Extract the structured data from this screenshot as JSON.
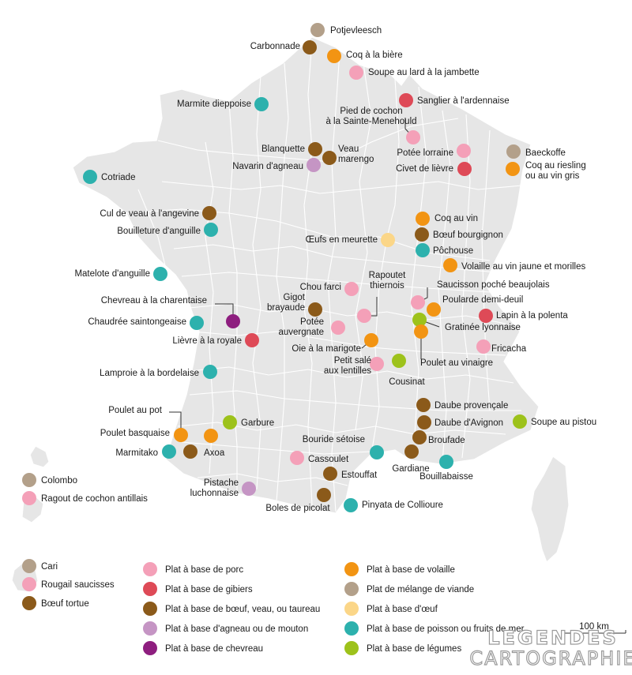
{
  "colors": {
    "porc": "#f4a0b8",
    "gibiers": "#de4a57",
    "boeuf": "#8b5a1a",
    "agneau": "#c595c4",
    "chevreau": "#8e1e7f",
    "volaille": "#f29413",
    "melange": "#b3a08a",
    "oeuf": "#fbd688",
    "poisson": "#2db1ad",
    "legumes": "#9dc21b",
    "land": "#e6e6e6",
    "border": "#ffffff"
  },
  "dishes": [
    {
      "name": "Potjevleesch",
      "cat": "melange"
    },
    {
      "name": "Carbonnade",
      "cat": "boeuf"
    },
    {
      "name": "Coq à la bière",
      "cat": "volaille"
    },
    {
      "name": "Soupe au lard à la jambette",
      "cat": "porc"
    },
    {
      "name": "Sanglier à l'ardennaise",
      "cat": "gibiers"
    },
    {
      "name": "Marmite dieppoise",
      "cat": "poisson"
    },
    {
      "name": "Pied de cochon",
      "name2": "à la Sainte-Menehould",
      "cat": "porc"
    },
    {
      "name": "Blanquette",
      "cat": "boeuf"
    },
    {
      "name": "Veau",
      "name2": "marengo",
      "cat": "boeuf"
    },
    {
      "name": "Navarin d'agneau",
      "cat": "agneau"
    },
    {
      "name": "Potée lorraine",
      "cat": "porc"
    },
    {
      "name": "Civet de lièvre",
      "cat": "gibiers"
    },
    {
      "name": "Baeckoffe",
      "cat": "melange"
    },
    {
      "name": "Coq au riesling",
      "name2": "ou au vin gris",
      "cat": "volaille"
    },
    {
      "name": "Cotriade",
      "cat": "poisson"
    },
    {
      "name": "Cul de veau à l'angevine",
      "cat": "boeuf"
    },
    {
      "name": "Bouilleture d'anguille",
      "cat": "poisson"
    },
    {
      "name": "Coq au vin",
      "cat": "volaille"
    },
    {
      "name": "Bœuf bourgignon",
      "cat": "boeuf"
    },
    {
      "name": "Œufs en meurette",
      "cat": "oeuf"
    },
    {
      "name": "Pôchouse",
      "cat": "poisson"
    },
    {
      "name": "Volaille au vin jaune et morilles",
      "cat": "volaille"
    },
    {
      "name": "Matelote d'anguille",
      "cat": "poisson"
    },
    {
      "name": "Chou farci",
      "cat": "porc"
    },
    {
      "name": "Rapoutet",
      "name2": "thiernois",
      "cat": "porc"
    },
    {
      "name": "Saucisson poché beaujolais",
      "cat": "porc"
    },
    {
      "name": "Poularde demi-deuil",
      "cat": "volaille"
    },
    {
      "name": "Chevreau à la charentaise",
      "cat": "chevreau"
    },
    {
      "name": "Gigot",
      "name2": "brayaude",
      "cat": "boeuf"
    },
    {
      "name": "Lapin à la polenta",
      "cat": "gibiers"
    },
    {
      "name": "Gratinée lyonnaise",
      "cat": "legumes"
    },
    {
      "name": "Chaudrée saintongeaise",
      "cat": "poisson"
    },
    {
      "name": "Potée",
      "name2": "auvergnate",
      "cat": "porc"
    },
    {
      "name": "Lièvre à la royale",
      "cat": "gibiers"
    },
    {
      "name": "Oie à la marigote",
      "cat": "volaille"
    },
    {
      "name": "Fricacha",
      "cat": "porc"
    },
    {
      "name": "Poulet au vinaigre",
      "cat": "volaille"
    },
    {
      "name": "Petit salé",
      "name2": "aux lentilles",
      "cat": "porc"
    },
    {
      "name": "Cousinat",
      "cat": "legumes"
    },
    {
      "name": "Lamproie à la bordelaise",
      "cat": "poisson"
    },
    {
      "name": "Poulet au pot",
      "cat": "volaille"
    },
    {
      "name": "Garbure",
      "cat": "legumes"
    },
    {
      "name": "Daube provençale",
      "cat": "boeuf"
    },
    {
      "name": "Daube d'Avignon",
      "cat": "boeuf"
    },
    {
      "name": "Soupe au pistou",
      "cat": "legumes"
    },
    {
      "name": "Poulet basquaise",
      "cat": "volaille"
    },
    {
      "name": "Bouride sétoise",
      "cat": "poisson"
    },
    {
      "name": "Broufade",
      "cat": "boeuf"
    },
    {
      "name": "Marmitako",
      "cat": "poisson"
    },
    {
      "name": "Axoa",
      "cat": "boeuf"
    },
    {
      "name": "Cassoulet",
      "cat": "porc"
    },
    {
      "name": "Gardiane",
      "cat": "boeuf"
    },
    {
      "name": "Bouillabaisse",
      "cat": "poisson"
    },
    {
      "name": "Estouffat",
      "cat": "boeuf"
    },
    {
      "name": "Pistache",
      "name2": "luchonnaise",
      "cat": "agneau"
    },
    {
      "name": "Pinyata de Collioure",
      "cat": "poisson"
    },
    {
      "name": "Boles de picolat",
      "cat": "boeuf"
    }
  ],
  "overseas": [
    {
      "name": "Colombo",
      "cat": "melange"
    },
    {
      "name": "Ragout de cochon antillais",
      "cat": "porc"
    },
    {
      "name": "Cari",
      "cat": "melange"
    },
    {
      "name": "Rougail saucisses",
      "cat": "porc"
    },
    {
      "name": "Bœuf tortue",
      "cat": "boeuf"
    }
  ],
  "legend": [
    {
      "label": "Plat à base de porc",
      "cat": "porc"
    },
    {
      "label": "Plat à base de gibiers",
      "cat": "gibiers"
    },
    {
      "label": "Plat à base de bœuf, veau, ou taureau",
      "cat": "boeuf"
    },
    {
      "label": "Plat à base d'agneau ou de mouton",
      "cat": "agneau"
    },
    {
      "label": "Plat à base de chevreau",
      "cat": "chevreau"
    },
    {
      "label": "Plat à base de volaille",
      "cat": "volaille"
    },
    {
      "label": "Plat de mélange de viande",
      "cat": "melange"
    },
    {
      "label": "Plat à base d'œuf",
      "cat": "oeuf"
    },
    {
      "label": "Plat à base de poisson ou fruits de mer",
      "cat": "poisson"
    },
    {
      "label": "Plat à base de légumes",
      "cat": "legumes"
    }
  ],
  "scale": {
    "label": "100 km"
  },
  "logo": {
    "line1": "LEGENDES",
    "line2": "CARTOGRAPHIE"
  }
}
